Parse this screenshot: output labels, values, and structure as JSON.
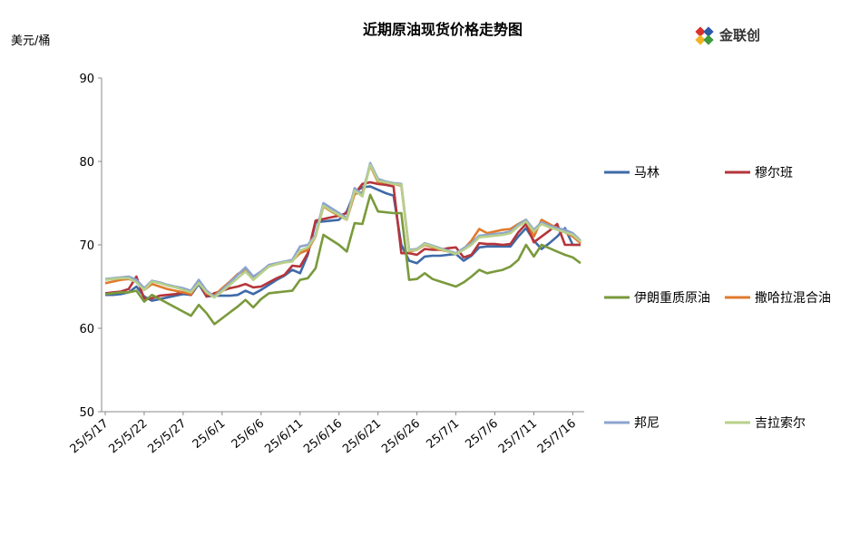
{
  "chart_data": {
    "type": "line",
    "title": "近期原油现货价格走势图",
    "ylabel": "美元/桶",
    "xlabel": "",
    "ylim": [
      50,
      90
    ],
    "yticks": [
      50,
      60,
      70,
      80,
      90
    ],
    "grid": false,
    "legend_placement": "right",
    "x": [
      "25/5/17",
      "25/5/18",
      "25/5/19",
      "25/5/20",
      "25/5/21",
      "25/5/22",
      "25/5/23",
      "25/5/24",
      "25/5/25",
      "25/5/26",
      "25/5/27",
      "25/5/28",
      "25/5/29",
      "25/5/30",
      "25/5/31",
      "25/6/1",
      "25/6/2",
      "25/6/3",
      "25/6/4",
      "25/6/5",
      "25/6/6",
      "25/6/7",
      "25/6/8",
      "25/6/9",
      "25/6/10",
      "25/6/11",
      "25/6/12",
      "25/6/13",
      "25/6/14",
      "25/6/15",
      "25/6/16",
      "25/6/17",
      "25/6/18",
      "25/6/19",
      "25/6/20",
      "25/6/21",
      "25/6/22",
      "25/6/23",
      "25/6/24",
      "25/6/25",
      "25/6/26",
      "25/6/27",
      "25/6/28",
      "25/6/29",
      "25/6/30",
      "25/7/1",
      "25/7/2",
      "25/7/3",
      "25/7/4",
      "25/7/5",
      "25/7/6",
      "25/7/7",
      "25/7/8",
      "25/7/9",
      "25/7/10",
      "25/7/11",
      "25/7/12",
      "25/7/13",
      "25/7/14",
      "25/7/15",
      "25/7/16",
      "25/7/17"
    ],
    "xtick_labels": [
      "25/5/17",
      "25/5/22",
      "25/5/27",
      "25/6/1",
      "25/6/6",
      "25/6/11",
      "25/6/16",
      "25/6/21",
      "25/6/26",
      "25/7/1",
      "25/7/6",
      "25/7/11",
      "25/7/16"
    ],
    "series": [
      {
        "name": "马林",
        "color": "#3f6aa8",
        "values": [
          64.0,
          64.0,
          64.1,
          64.3,
          65.0,
          63.8,
          63.3,
          63.5,
          63.7,
          63.9,
          64.1,
          64.0,
          65.3,
          63.8,
          63.9,
          63.9,
          63.9,
          64.0,
          64.5,
          64.1,
          64.6,
          65.2,
          65.8,
          66.3,
          67.0,
          66.6,
          68.8,
          72.7,
          72.8,
          72.9,
          73.0,
          74.0,
          76.3,
          76.9,
          77.0,
          76.6,
          76.2,
          75.9,
          70.0,
          68.1,
          67.8,
          68.6,
          68.7,
          68.7,
          68.8,
          68.9,
          68.1,
          68.7,
          69.7,
          69.8,
          69.8,
          69.8,
          69.8,
          71.0,
          72.0,
          70.5,
          69.5,
          70.2,
          71.0,
          72.0,
          70.0,
          70.0
        ]
      },
      {
        "name": "穆尔班",
        "color": "#b5353a",
        "values": [
          64.2,
          64.3,
          64.4,
          64.7,
          66.2,
          63.5,
          63.6,
          63.9,
          64.0,
          64.1,
          64.3,
          64.0,
          65.6,
          63.8,
          64.2,
          64.5,
          64.8,
          65.0,
          65.3,
          64.9,
          65.0,
          65.5,
          66.0,
          66.4,
          67.5,
          67.4,
          69.0,
          72.9,
          73.1,
          73.3,
          73.5,
          73.8,
          76.1,
          77.3,
          77.5,
          77.3,
          77.2,
          77.0,
          69.0,
          69.0,
          68.8,
          69.5,
          69.4,
          69.4,
          69.6,
          69.7,
          68.5,
          68.8,
          70.2,
          70.1,
          70.1,
          70.0,
          70.1,
          71.5,
          72.5,
          70.3,
          71.0,
          71.7,
          72.5,
          70.0,
          70.0,
          70.0
        ]
      },
      {
        "name": "伊朗重质原油",
        "color": "#7a9a3c",
        "values": [
          64.1,
          64.2,
          64.3,
          64.3,
          64.5,
          63.2,
          64.0,
          63.5,
          63.0,
          62.5,
          62.0,
          61.5,
          62.8,
          61.8,
          60.5,
          61.2,
          61.9,
          62.6,
          63.4,
          62.5,
          63.5,
          64.2,
          64.3,
          64.4,
          64.5,
          65.8,
          66.0,
          67.2,
          71.2,
          70.6,
          70.0,
          69.2,
          72.6,
          72.5,
          76.0,
          74.0,
          73.9,
          73.8,
          73.8,
          65.8,
          65.9,
          66.6,
          65.9,
          65.6,
          65.3,
          65.0,
          65.5,
          66.2,
          67.0,
          66.6,
          66.8,
          67.0,
          67.4,
          68.2,
          70.0,
          68.6,
          70.0,
          69.6,
          69.2,
          68.8,
          68.5,
          67.8
        ]
      },
      {
        "name": "撒哈拉混合油",
        "color": "#e07a2c",
        "values": [
          65.4,
          65.6,
          65.8,
          65.9,
          65.6,
          64.6,
          65.3,
          65.0,
          64.7,
          64.5,
          64.3,
          64.1,
          65.6,
          64.2,
          63.9,
          64.8,
          65.6,
          66.5,
          67.0,
          65.8,
          66.8,
          67.4,
          67.7,
          67.9,
          68.1,
          69.0,
          69.4,
          71.0,
          74.6,
          74.0,
          73.5,
          73.0,
          76.1,
          76.3,
          79.5,
          77.5,
          77.5,
          77.3,
          77.1,
          69.2,
          69.4,
          70.0,
          69.7,
          69.4,
          69.2,
          68.9,
          69.5,
          70.5,
          71.9,
          71.4,
          71.6,
          71.8,
          71.9,
          72.5,
          73.0,
          71.0,
          73.0,
          72.5,
          72.0,
          71.5,
          71.0,
          70.2
        ]
      },
      {
        "name": "邦尼",
        "color": "#8ca4cf",
        "values": [
          65.9,
          66.0,
          66.1,
          66.2,
          65.8,
          64.8,
          65.7,
          65.5,
          65.2,
          65.0,
          64.8,
          64.5,
          65.8,
          64.5,
          63.8,
          64.6,
          65.5,
          66.4,
          67.3,
          66.2,
          66.8,
          67.6,
          67.8,
          68.0,
          68.2,
          69.8,
          70.0,
          71.2,
          75.0,
          74.4,
          73.8,
          73.2,
          76.8,
          76.0,
          79.8,
          77.9,
          77.6,
          77.4,
          77.3,
          69.4,
          69.5,
          70.2,
          69.9,
          69.6,
          69.3,
          69.0,
          69.6,
          70.2,
          71.1,
          71.2,
          71.3,
          71.4,
          71.6,
          72.4,
          73.0,
          71.8,
          72.7,
          72.3,
          72.0,
          71.8,
          71.4,
          70.5
        ]
      },
      {
        "name": "吉拉索尔",
        "color": "#b8d08a",
        "values": [
          65.8,
          65.9,
          66.0,
          66.0,
          65.5,
          64.6,
          65.6,
          65.4,
          65.1,
          64.9,
          64.6,
          64.3,
          65.4,
          64.3,
          63.7,
          64.4,
          65.2,
          66.0,
          66.8,
          65.8,
          66.6,
          67.4,
          67.7,
          67.9,
          68.0,
          69.3,
          69.7,
          71.0,
          74.7,
          74.1,
          73.6,
          73.0,
          76.5,
          75.8,
          79.6,
          77.7,
          77.5,
          77.3,
          77.2,
          69.3,
          69.4,
          70.1,
          69.8,
          69.5,
          69.2,
          68.9,
          69.4,
          70.0,
          70.9,
          71.0,
          71.1,
          71.2,
          71.4,
          72.2,
          72.8,
          71.6,
          72.5,
          72.1,
          71.8,
          71.5,
          71.2,
          70.4
        ]
      }
    ]
  },
  "logo": {
    "text": "金联创",
    "colors": [
      "#d9312b",
      "#2a5aa8",
      "#f0b323",
      "#3d9a3d"
    ]
  }
}
